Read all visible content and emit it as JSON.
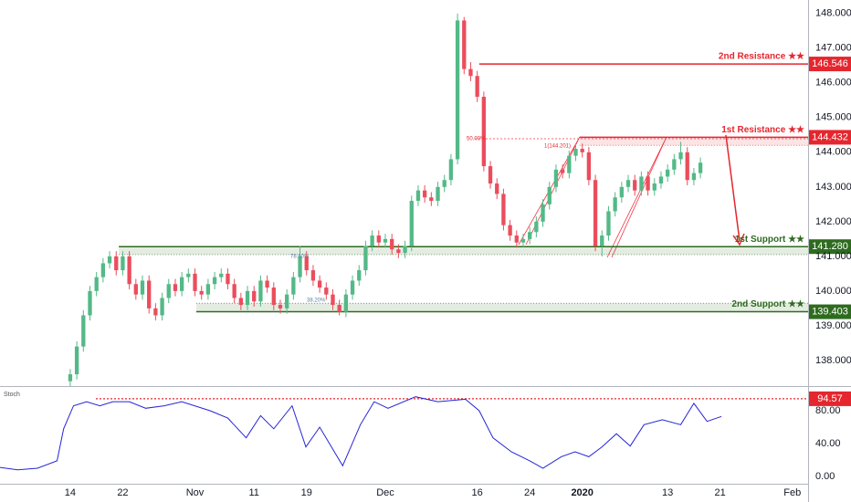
{
  "chart_data": [
    {
      "type": "candlestick",
      "x": [
        14,
        15,
        16,
        17,
        18,
        19,
        20,
        21,
        22,
        23,
        24,
        25,
        26,
        27,
        28,
        29,
        30,
        31,
        32,
        33,
        34,
        35,
        36,
        37,
        38,
        39,
        40,
        41,
        42,
        43,
        44,
        45,
        46,
        47,
        48,
        49,
        50,
        51,
        52,
        53,
        54,
        55,
        56,
        57,
        58,
        59,
        60,
        61,
        62,
        63,
        64,
        65,
        66,
        67,
        68,
        69,
        70,
        71,
        72,
        73,
        74,
        75,
        76,
        77,
        78,
        79,
        80,
        81,
        82,
        83,
        84,
        85,
        86,
        87,
        88,
        89,
        90,
        91,
        92,
        93,
        94,
        95,
        96,
        97,
        98,
        99,
        100,
        101,
        102,
        103,
        104,
        105,
        106,
        107,
        108,
        109,
        110
      ],
      "ohlc": [
        [
          137.4,
          137.75,
          137.25,
          137.6
        ],
        [
          137.6,
          138.55,
          137.45,
          138.4
        ],
        [
          138.4,
          139.45,
          138.25,
          139.3
        ],
        [
          139.3,
          140.15,
          139.15,
          140.0
        ],
        [
          140.0,
          140.55,
          139.85,
          140.4
        ],
        [
          140.4,
          140.95,
          140.25,
          140.8
        ],
        [
          140.8,
          141.15,
          140.65,
          141.0
        ],
        [
          141.0,
          141.15,
          140.45,
          140.6
        ],
        [
          140.6,
          141.15,
          140.45,
          141.0
        ],
        [
          141.0,
          141.15,
          140.05,
          140.2
        ],
        [
          140.2,
          140.35,
          139.75,
          139.9
        ],
        [
          139.9,
          140.45,
          139.75,
          140.3
        ],
        [
          140.3,
          140.45,
          139.35,
          139.5
        ],
        [
          139.5,
          139.65,
          139.15,
          139.3
        ],
        [
          139.3,
          139.95,
          139.15,
          139.8
        ],
        [
          139.8,
          140.35,
          139.65,
          140.2
        ],
        [
          140.2,
          140.35,
          139.85,
          140.0
        ],
        [
          140.0,
          140.55,
          139.85,
          140.4
        ],
        [
          140.4,
          140.65,
          140.25,
          140.5
        ],
        [
          140.5,
          140.65,
          139.85,
          140.0
        ],
        [
          140.0,
          140.15,
          139.75,
          139.9
        ],
        [
          139.9,
          140.35,
          139.75,
          140.2
        ],
        [
          140.2,
          140.55,
          140.05,
          140.4
        ],
        [
          140.4,
          140.65,
          140.25,
          140.5
        ],
        [
          140.5,
          140.65,
          140.05,
          140.2
        ],
        [
          140.2,
          140.35,
          139.65,
          139.8
        ],
        [
          139.8,
          139.95,
          139.45,
          139.6
        ],
        [
          139.6,
          140.15,
          139.45,
          140.0
        ],
        [
          140.0,
          140.15,
          139.55,
          139.7
        ],
        [
          139.7,
          140.45,
          139.55,
          140.3
        ],
        [
          140.3,
          140.45,
          139.95,
          140.1
        ],
        [
          140.1,
          140.25,
          139.45,
          139.6
        ],
        [
          139.6,
          139.75,
          139.35,
          139.5
        ],
        [
          139.5,
          140.05,
          139.35,
          139.9
        ],
        [
          139.9,
          140.55,
          139.75,
          140.4
        ],
        [
          140.4,
          141.3,
          140.25,
          141.0
        ],
        [
          141.0,
          141.15,
          140.45,
          140.6
        ],
        [
          140.6,
          140.75,
          140.15,
          140.3
        ],
        [
          140.3,
          140.45,
          139.95,
          140.1
        ],
        [
          140.1,
          140.25,
          139.75,
          139.9
        ],
        [
          139.9,
          140.05,
          139.45,
          139.6
        ],
        [
          139.6,
          139.75,
          139.3,
          139.4
        ],
        [
          139.4,
          140.05,
          139.25,
          139.9
        ],
        [
          139.9,
          140.45,
          139.75,
          140.3
        ],
        [
          140.3,
          140.75,
          140.15,
          140.6
        ],
        [
          140.6,
          141.45,
          140.45,
          141.3
        ],
        [
          141.3,
          141.75,
          141.15,
          141.6
        ],
        [
          141.6,
          141.75,
          141.25,
          141.4
        ],
        [
          141.4,
          141.65,
          141.25,
          141.5
        ],
        [
          141.5,
          141.65,
          141.05,
          141.2
        ],
        [
          141.2,
          141.35,
          140.95,
          141.1
        ],
        [
          141.1,
          141.45,
          140.95,
          141.3
        ],
        [
          141.3,
          142.75,
          141.15,
          142.6
        ],
        [
          142.6,
          143.05,
          142.45,
          142.9
        ],
        [
          142.9,
          143.05,
          142.55,
          142.7
        ],
        [
          142.7,
          142.85,
          142.45,
          142.6
        ],
        [
          142.6,
          143.15,
          142.45,
          143.0
        ],
        [
          143.0,
          143.35,
          142.85,
          143.2
        ],
        [
          143.2,
          143.95,
          143.05,
          143.8
        ],
        [
          143.8,
          148.0,
          143.65,
          147.8
        ],
        [
          147.8,
          147.9,
          146.25,
          146.4
        ],
        [
          146.4,
          146.6,
          146.05,
          146.2
        ],
        [
          146.2,
          146.35,
          145.45,
          145.6
        ],
        [
          145.6,
          145.75,
          143.45,
          143.6
        ],
        [
          143.6,
          143.75,
          142.95,
          143.1
        ],
        [
          143.1,
          143.25,
          142.65,
          142.8
        ],
        [
          142.8,
          142.95,
          141.75,
          141.9
        ],
        [
          141.9,
          142.05,
          141.45,
          141.6
        ],
        [
          141.6,
          141.75,
          141.25,
          141.4
        ],
        [
          141.4,
          141.65,
          141.25,
          141.5
        ],
        [
          141.5,
          141.85,
          141.35,
          141.7
        ],
        [
          141.7,
          142.15,
          141.55,
          142.0
        ],
        [
          142.0,
          142.65,
          141.85,
          142.5
        ],
        [
          142.5,
          143.15,
          142.35,
          143.0
        ],
        [
          143.0,
          143.65,
          142.85,
          143.5
        ],
        [
          143.5,
          143.65,
          143.25,
          143.4
        ],
        [
          143.4,
          144.05,
          143.25,
          143.9
        ],
        [
          143.9,
          144.25,
          143.75,
          144.1
        ],
        [
          144.1,
          144.25,
          143.85,
          144.0
        ],
        [
          144.0,
          144.15,
          143.05,
          143.2
        ],
        [
          143.2,
          143.35,
          141.15,
          141.3
        ],
        [
          141.3,
          141.75,
          141.0,
          141.6
        ],
        [
          141.6,
          142.45,
          141.45,
          142.3
        ],
        [
          142.3,
          142.85,
          142.15,
          142.7
        ],
        [
          142.7,
          143.15,
          142.55,
          143.0
        ],
        [
          143.0,
          143.35,
          142.85,
          143.2
        ],
        [
          143.2,
          143.35,
          142.75,
          142.9
        ],
        [
          142.9,
          143.45,
          142.75,
          143.3
        ],
        [
          143.3,
          143.45,
          142.75,
          142.9
        ],
        [
          142.9,
          143.25,
          142.75,
          143.1
        ],
        [
          143.1,
          143.45,
          142.95,
          143.3
        ],
        [
          143.3,
          143.65,
          143.15,
          143.5
        ],
        [
          143.5,
          143.95,
          143.35,
          143.8
        ],
        [
          143.8,
          144.3,
          143.65,
          144.0
        ],
        [
          144.0,
          144.15,
          143.05,
          143.2
        ],
        [
          143.2,
          143.55,
          143.05,
          143.4
        ],
        [
          143.4,
          143.85,
          143.25,
          143.7
        ]
      ],
      "up_color": "#53b987",
      "down_color": "#eb4d5c",
      "xlim": [
        3.3,
        126.4
      ],
      "ylim": [
        137.26,
        148.39
      ],
      "yticks": [
        {
          "value": 138,
          "label": "138.000"
        },
        {
          "value": 139,
          "label": "139.000"
        },
        {
          "value": 140,
          "label": "140.000"
        },
        {
          "value": 141,
          "label": "141.000"
        },
        {
          "value": 142,
          "label": "142.000"
        },
        {
          "value": 143,
          "label": "143.000"
        },
        {
          "value": 144,
          "label": "144.000"
        },
        {
          "value": 145,
          "label": "145.000"
        },
        {
          "value": 146,
          "label": "146.000"
        },
        {
          "value": 147,
          "label": "147.000"
        },
        {
          "value": 148,
          "label": "148.000"
        }
      ],
      "levels": [
        {
          "name": "2nd Resistance ★★",
          "value": 146.546,
          "from": 76.3,
          "color": "#e5262e"
        },
        {
          "name": "1st Resistance ★★",
          "value": 144.432,
          "zone": 144.201,
          "from": 91.6,
          "color": "#e5262e"
        },
        {
          "name": "1st Support ★★",
          "value": {
            "value": 141.28,
            "label": "141.280"
          },
          "zone": 141.05,
          "from": 21.4,
          "color": "#2e6b1f"
        },
        {
          "name": "2nd Support ★★",
          "value": 139.403,
          "zone": 139.65,
          "from": 33.2,
          "color": "#2e6b1f"
        }
      ],
      "annotations": [
        "50.00%",
        "1(144.201)",
        "78.60%",
        "38.20%"
      ]
    },
    {
      "type": "line",
      "title": "Stoch",
      "color": "#2424d8",
      "x": [
        3.3,
        6,
        9,
        12,
        13,
        14.5,
        16.5,
        18.5,
        20.5,
        23,
        25.5,
        28.3,
        31,
        35.3,
        38,
        40.8,
        43,
        45,
        47.8,
        49.9,
        52,
        55.5,
        58.2,
        60.3,
        62.4,
        66.6,
        70,
        74.2,
        76.3,
        78.4,
        81.2,
        84,
        86,
        88.8,
        90.9,
        93,
        95,
        97.2,
        99.3,
        101.4,
        104.2,
        107,
        109,
        111,
        113.2
      ],
      "values": [
        11,
        8,
        10,
        19,
        58,
        86,
        91,
        86,
        91,
        91,
        83,
        86,
        91,
        80,
        71,
        47,
        74,
        58,
        86,
        36,
        60,
        13,
        63,
        91,
        83,
        97,
        91,
        94,
        80,
        47,
        30,
        19,
        10,
        24,
        30,
        24,
        36,
        52,
        37,
        63,
        69,
        63,
        89,
        67,
        73
      ],
      "level": 94.57,
      "xlim": [
        3.3,
        126.4
      ],
      "ylim": [
        -8.9,
        107.8
      ],
      "yticks": [
        {
          "value": 0,
          "label": "0.00"
        },
        {
          "value": 40,
          "label": "40.00"
        },
        {
          "value": 80,
          "label": "80.00"
        }
      ],
      "xticks": [
        14,
        22,
        {
          "value": 33,
          "label": "Nov"
        },
        {
          "value": 42,
          "label": "11"
        },
        {
          "value": 50,
          "label": "19"
        },
        {
          "value": 62,
          "label": "Dec"
        },
        {
          "value": 76,
          "label": "16"
        },
        {
          "value": 84,
          "label": "24"
        },
        {
          "value": 92,
          "label": "2020"
        },
        {
          "value": 105,
          "label": "13"
        },
        {
          "value": 113,
          "label": "21"
        },
        {
          "value": 124,
          "label": "Feb"
        }
      ]
    }
  ]
}
